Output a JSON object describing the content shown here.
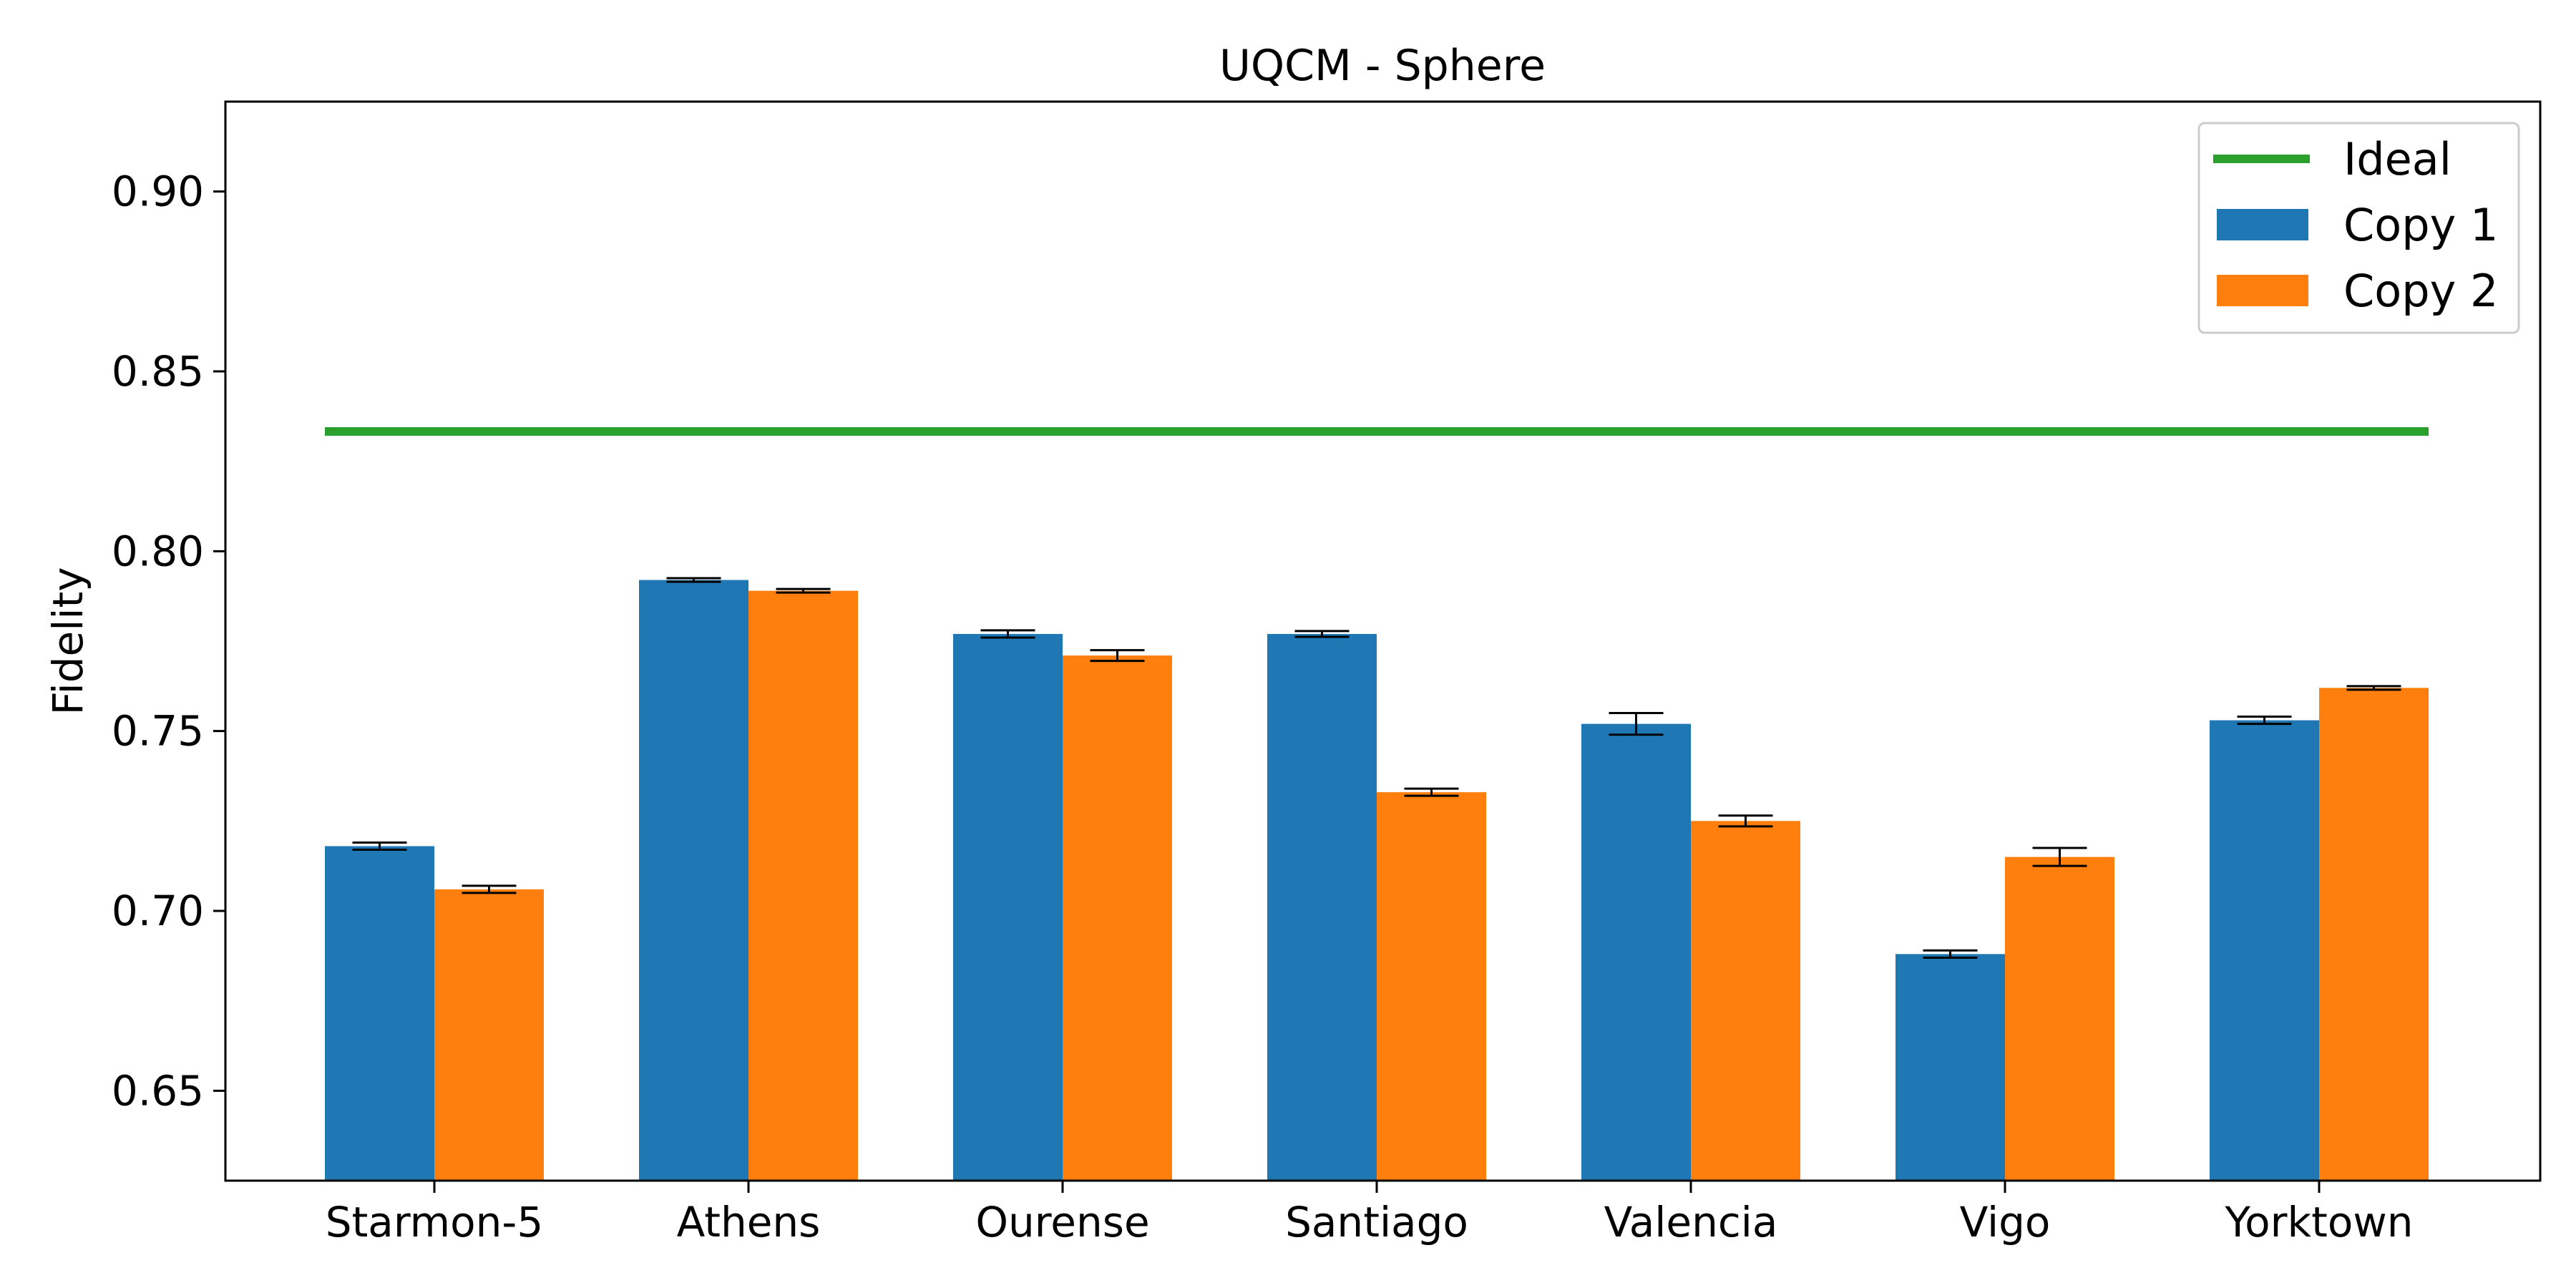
{
  "chart_data": {
    "type": "bar",
    "title": "UQCM - Sphere",
    "xlabel": "",
    "ylabel": "Fidelity",
    "categories": [
      "Starmon-5",
      "Athens",
      "Ourense",
      "Santiago",
      "Valencia",
      "Vigo",
      "Yorktown"
    ],
    "ylim": [
      0.625,
      0.925
    ],
    "yticks": [
      0.65,
      0.7,
      0.75,
      0.8,
      0.85,
      0.9
    ],
    "ytick_labels": [
      "0.65",
      "0.70",
      "0.75",
      "0.80",
      "0.85",
      "0.90"
    ],
    "grid": false,
    "legend_position": "top-right",
    "ideal": {
      "name": "Ideal",
      "value": 0.8333,
      "color": "#2ca02c"
    },
    "series": [
      {
        "name": "Copy 1",
        "color": "#1f77b4",
        "values": [
          0.718,
          0.792,
          0.777,
          0.777,
          0.752,
          0.688,
          0.753
        ],
        "errors": [
          0.001,
          0.0005,
          0.001,
          0.0008,
          0.003,
          0.001,
          0.001
        ]
      },
      {
        "name": "Copy 2",
        "color": "#ff7f0e",
        "values": [
          0.706,
          0.789,
          0.771,
          0.733,
          0.725,
          0.715,
          0.762
        ],
        "errors": [
          0.001,
          0.0005,
          0.0015,
          0.001,
          0.0015,
          0.0025,
          0.0005
        ]
      }
    ]
  }
}
